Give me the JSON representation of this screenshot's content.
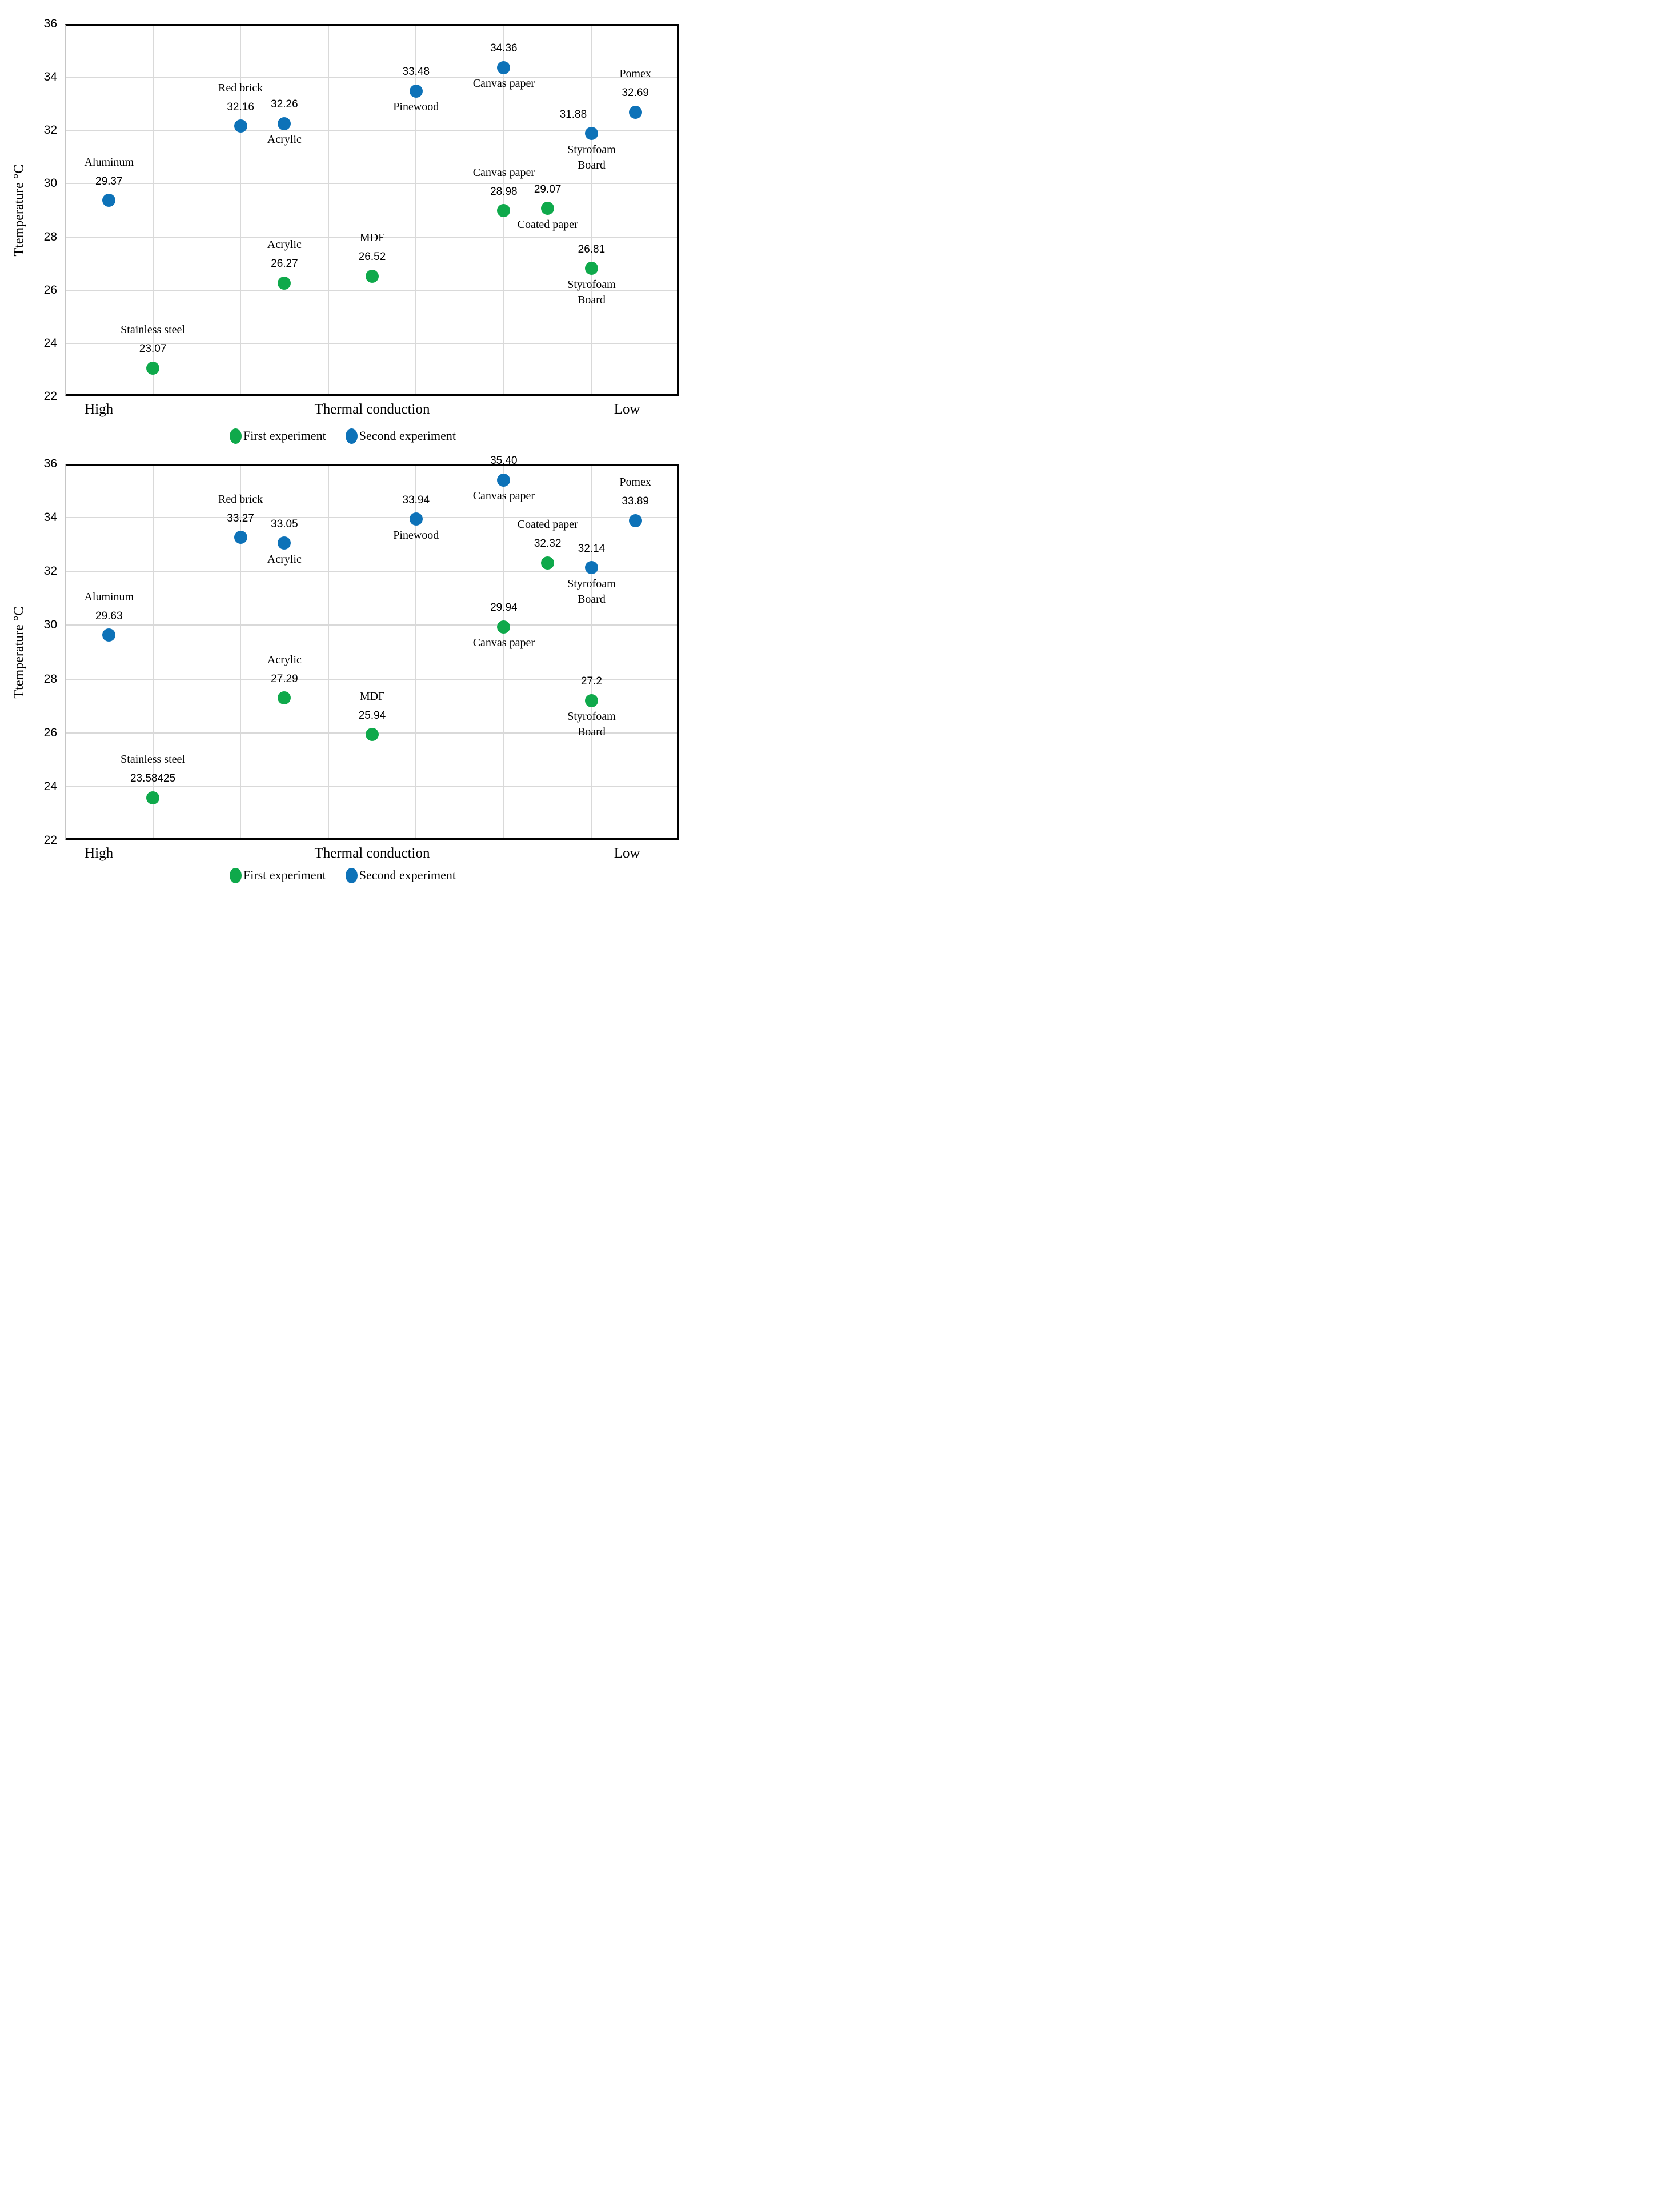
{
  "figure_title": "",
  "series_colors": {
    "first": "#0FA94B",
    "second": "#0D72B8"
  },
  "grid_color": "#D9D9D9",
  "chart_data": [
    {
      "type": "scatter",
      "ylabel": "Ttemperature °C",
      "xlabel": "Thermal conduction",
      "x_end_labels": [
        "High",
        "Low"
      ],
      "ylim": [
        22,
        36
      ],
      "yticks": [
        36,
        34,
        32,
        30,
        28,
        26,
        24,
        22
      ],
      "x_units_max": 14,
      "grid": true,
      "legend_position": "bottom",
      "legend": [
        {
          "series": "first",
          "label": "First experiment"
        },
        {
          "series": "second",
          "label": "Second experiment"
        }
      ],
      "points": [
        {
          "material": "Aluminum",
          "series": "second",
          "x": 1,
          "value": 29.37,
          "value_label": "29.37",
          "name_pos": "above",
          "name_lines": [
            "Aluminum"
          ]
        },
        {
          "material": "Stainless steel",
          "series": "first",
          "x": 2,
          "value": 23.07,
          "value_label": "23.07",
          "name_pos": "above",
          "name_lines": [
            "Stainless steel"
          ]
        },
        {
          "material": "Red brick",
          "series": "second",
          "x": 4,
          "value": 32.16,
          "value_label": "32.16",
          "name_pos": "above",
          "name_lines": [
            "Red brick"
          ]
        },
        {
          "material": "Acrylic",
          "series": "second",
          "x": 5,
          "value": 32.26,
          "value_label": "32.26",
          "name_pos": "below",
          "name_lines": [
            "Acrylic"
          ]
        },
        {
          "material": "Acrylic",
          "series": "first",
          "x": 5,
          "value": 26.27,
          "value_label": "26.27",
          "name_pos": "above",
          "name_lines": [
            "Acrylic"
          ]
        },
        {
          "material": "MDF",
          "series": "first",
          "x": 7,
          "value": 26.52,
          "value_label": "26.52",
          "name_pos": "above",
          "name_lines": [
            "MDF"
          ]
        },
        {
          "material": "Pinewood",
          "series": "second",
          "x": 8,
          "value": 33.48,
          "value_label": "33.48",
          "name_pos": "below",
          "name_lines": [
            "Pinewood"
          ]
        },
        {
          "material": "Canvas paper",
          "series": "second",
          "x": 10,
          "value": 34.36,
          "value_label": "34.36",
          "name_pos": "below",
          "name_lines": [
            "Canvas paper"
          ]
        },
        {
          "material": "Canvas paper",
          "series": "first",
          "x": 10,
          "value": 28.98,
          "value_label": "28.98",
          "name_pos": "above",
          "name_lines": [
            "Canvas paper"
          ]
        },
        {
          "material": "Coated paper",
          "series": "first",
          "x": 11,
          "value": 29.07,
          "value_label": "29.07",
          "name_pos": "below",
          "name_lines": [
            "Coated paper"
          ]
        },
        {
          "material": "Styrofoam Board",
          "series": "second",
          "x": 12,
          "value": 31.88,
          "value_label": "31.88",
          "name_pos": "below",
          "name_lines": [
            "Styrofoam",
            "Board"
          ],
          "label_dx": -32
        },
        {
          "material": "Styrofoam Board",
          "series": "first",
          "x": 12,
          "value": 26.81,
          "value_label": "26.81",
          "name_pos": "below",
          "name_lines": [
            "Styrofoam",
            "Board"
          ]
        },
        {
          "material": "Pomex",
          "series": "second",
          "x": 13,
          "value": 32.69,
          "value_label": "32.69",
          "name_pos": "above",
          "name_lines": [
            "Pomex"
          ]
        }
      ]
    },
    {
      "type": "scatter",
      "ylabel": "Ttemperature °C",
      "xlabel": "Thermal conduction",
      "x_end_labels": [
        "High",
        "Low"
      ],
      "ylim": [
        22,
        36
      ],
      "yticks": [
        36,
        34,
        32,
        30,
        28,
        26,
        24,
        22
      ],
      "x_units_max": 14,
      "grid": true,
      "legend_position": "bottom",
      "legend": [
        {
          "series": "first",
          "label": "First experiment"
        },
        {
          "series": "second",
          "label": "Second experiment"
        }
      ],
      "points": [
        {
          "material": "Aluminum",
          "series": "second",
          "x": 1,
          "value": 29.63,
          "value_label": "29.63",
          "name_pos": "above",
          "name_lines": [
            "Aluminum"
          ]
        },
        {
          "material": "Stainless steel",
          "series": "first",
          "x": 2,
          "value": 23.58425,
          "value_label": "23.58425",
          "name_pos": "above",
          "name_lines": [
            "Stainless steel"
          ]
        },
        {
          "material": "Red brick",
          "series": "second",
          "x": 4,
          "value": 33.27,
          "value_label": "33.27",
          "name_pos": "above",
          "name_lines": [
            "Red brick"
          ]
        },
        {
          "material": "Acrylic",
          "series": "second",
          "x": 5,
          "value": 33.05,
          "value_label": "33.05",
          "name_pos": "below",
          "name_lines": [
            "Acrylic"
          ]
        },
        {
          "material": "Acrylic",
          "series": "first",
          "x": 5,
          "value": 27.29,
          "value_label": "27.29",
          "name_pos": "above",
          "name_lines": [
            "Acrylic"
          ]
        },
        {
          "material": "MDF",
          "series": "first",
          "x": 7,
          "value": 25.94,
          "value_label": "25.94",
          "name_pos": "above",
          "name_lines": [
            "MDF"
          ]
        },
        {
          "material": "Pinewood",
          "series": "second",
          "x": 8,
          "value": 33.94,
          "value_label": "33.94",
          "name_pos": "below",
          "name_lines": [
            "Pinewood"
          ]
        },
        {
          "material": "Canvas paper",
          "series": "second",
          "x": 10,
          "value": 35.4,
          "value_label": "35.40",
          "name_pos": "below",
          "name_lines": [
            "Canvas paper"
          ]
        },
        {
          "material": "Canvas paper",
          "series": "first",
          "x": 10,
          "value": 29.94,
          "value_label": "29.94",
          "name_pos": "below",
          "name_lines": [
            "Canvas paper"
          ]
        },
        {
          "material": "Coated paper",
          "series": "first",
          "x": 11,
          "value": 32.32,
          "value_label": "32.32",
          "name_pos": "above",
          "name_lines": [
            "Coated paper"
          ]
        },
        {
          "material": "Styrofoam Board",
          "series": "second",
          "x": 12,
          "value": 32.14,
          "value_label": "32.14",
          "name_pos": "below",
          "name_lines": [
            "Styrofoam",
            "Board"
          ]
        },
        {
          "material": "Styrofoam Board",
          "series": "first",
          "x": 12,
          "value": 27.2,
          "value_label": "27.2",
          "name_pos": "below",
          "name_lines": [
            "Styrofoam",
            "Board"
          ]
        },
        {
          "material": "Pomex",
          "series": "second",
          "x": 13,
          "value": 33.89,
          "value_label": "33.89",
          "name_pos": "above",
          "name_lines": [
            "Pomex"
          ]
        }
      ]
    }
  ]
}
